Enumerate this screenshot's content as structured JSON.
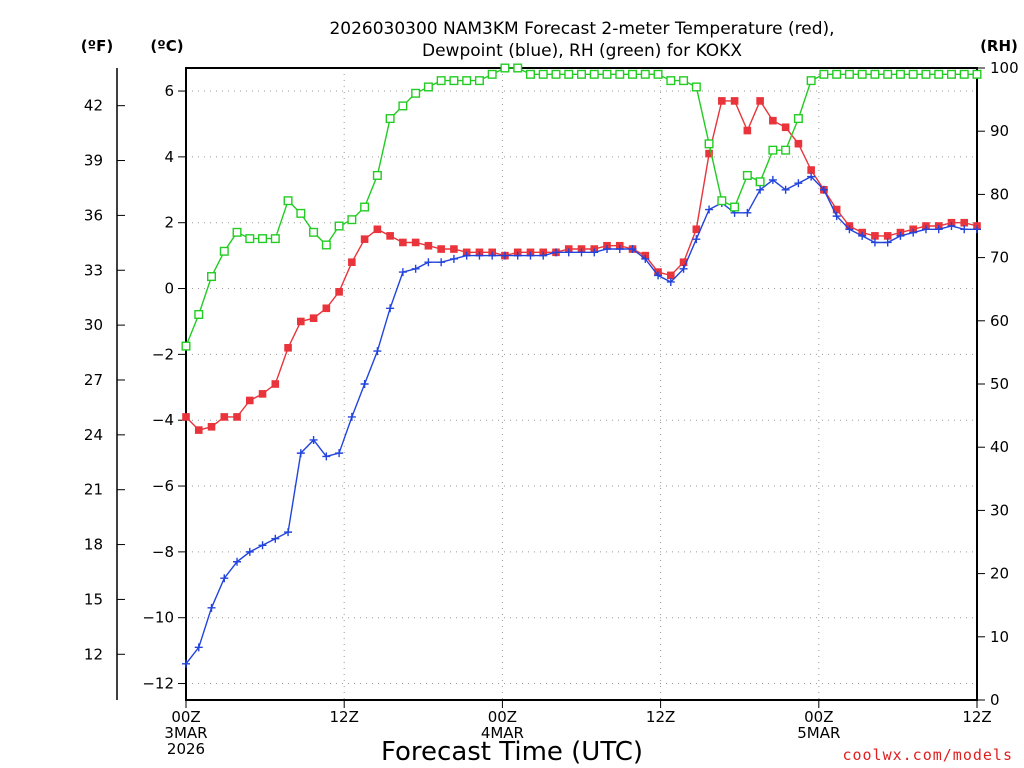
{
  "chart_data": {
    "type": "line",
    "title_line1": "2026030300 NAM3KM Forecast 2-meter Temperature (red),",
    "title_line2": "Dewpoint (blue), RH (green) for KOKX",
    "xlabel": "Forecast Time (UTC)",
    "credit": "coolwx.com/models",
    "left_outer_unit": "(ºF)",
    "left_inner_unit": "(ºC)",
    "right_unit": "(RH)",
    "xlim_hours": [
      0,
      60
    ],
    "ylim_c": [
      -12.5,
      6.7
    ],
    "ylim_rh": [
      0,
      100
    ],
    "x_ticks": [
      {
        "hour": 0,
        "lines": [
          "00Z",
          "3MAR",
          "2026"
        ]
      },
      {
        "hour": 12,
        "lines": [
          "12Z"
        ]
      },
      {
        "hour": 24,
        "lines": [
          "00Z",
          "4MAR"
        ]
      },
      {
        "hour": 36,
        "lines": [
          "12Z"
        ]
      },
      {
        "hour": 48,
        "lines": [
          "00Z",
          "5MAR"
        ]
      },
      {
        "hour": 60,
        "lines": [
          "12Z"
        ]
      }
    ],
    "y_ticks_c": [
      "6",
      "4",
      "2",
      "0",
      "−2",
      "−4",
      "−6",
      "−8",
      "−10",
      "−12"
    ],
    "y_ticks_f": [
      "42",
      "39",
      "36",
      "33",
      "30",
      "27",
      "24",
      "21",
      "18",
      "15",
      "12"
    ],
    "y_ticks_rh": [
      "100",
      "90",
      "80",
      "70",
      "60",
      "50",
      "40",
      "30",
      "20",
      "10",
      "0"
    ],
    "series": [
      {
        "name": "Temperature",
        "units": "C",
        "color": "#e8343a",
        "marker": "filled-square",
        "values": [
          -3.9,
          -4.3,
          -4.2,
          -3.9,
          -3.9,
          -3.4,
          -3.2,
          -2.9,
          -1.8,
          -1.0,
          -0.9,
          -0.6,
          -0.1,
          0.8,
          1.5,
          1.8,
          1.6,
          1.4,
          1.4,
          1.3,
          1.2,
          1.2,
          1.1,
          1.1,
          1.1,
          1.0,
          1.1,
          1.1,
          1.1,
          1.1,
          1.2,
          1.2,
          1.2,
          1.3,
          1.3,
          1.2,
          1.0,
          0.5,
          0.4,
          0.8,
          1.8,
          4.1,
          5.7,
          5.7,
          4.8,
          5.7,
          5.1,
          4.9,
          4.4,
          3.6,
          3.0,
          2.4,
          1.9,
          1.7,
          1.6,
          1.6,
          1.7,
          1.8,
          1.9,
          1.9,
          2.0,
          2.0,
          1.9
        ]
      },
      {
        "name": "Dewpoint",
        "units": "C",
        "color": "#2244dd",
        "marker": "plus",
        "values": [
          -11.4,
          -10.9,
          -9.7,
          -8.8,
          -8.3,
          -8.0,
          -7.8,
          -7.6,
          -7.4,
          -5.0,
          -4.6,
          -5.1,
          -5.0,
          -3.9,
          -2.9,
          -1.9,
          -0.6,
          0.5,
          0.6,
          0.8,
          0.8,
          0.9,
          1.0,
          1.0,
          1.0,
          1.0,
          1.0,
          1.0,
          1.0,
          1.1,
          1.1,
          1.1,
          1.1,
          1.2,
          1.2,
          1.2,
          0.9,
          0.4,
          0.2,
          0.6,
          1.5,
          2.4,
          2.6,
          2.3,
          2.3,
          3.0,
          3.3,
          3.0,
          3.2,
          3.4,
          3.0,
          2.2,
          1.8,
          1.6,
          1.4,
          1.4,
          1.6,
          1.7,
          1.8,
          1.8,
          1.9,
          1.8,
          1.8
        ]
      },
      {
        "name": "RH",
        "units": "%",
        "color": "#22cc22",
        "marker": "open-square",
        "values": [
          56,
          61,
          67,
          71,
          74,
          73,
          73,
          73,
          79,
          77,
          74,
          72,
          75,
          76,
          78,
          83,
          92,
          94,
          96,
          97,
          98,
          98,
          98,
          98,
          99,
          100,
          100,
          99,
          99,
          99,
          99,
          99,
          99,
          99,
          99,
          99,
          99,
          99,
          98,
          98,
          97,
          88,
          79,
          78,
          83,
          82,
          87,
          87,
          92,
          98,
          99,
          99,
          99,
          99,
          99,
          99,
          99,
          99,
          99,
          99,
          99,
          99,
          99
        ]
      }
    ]
  }
}
